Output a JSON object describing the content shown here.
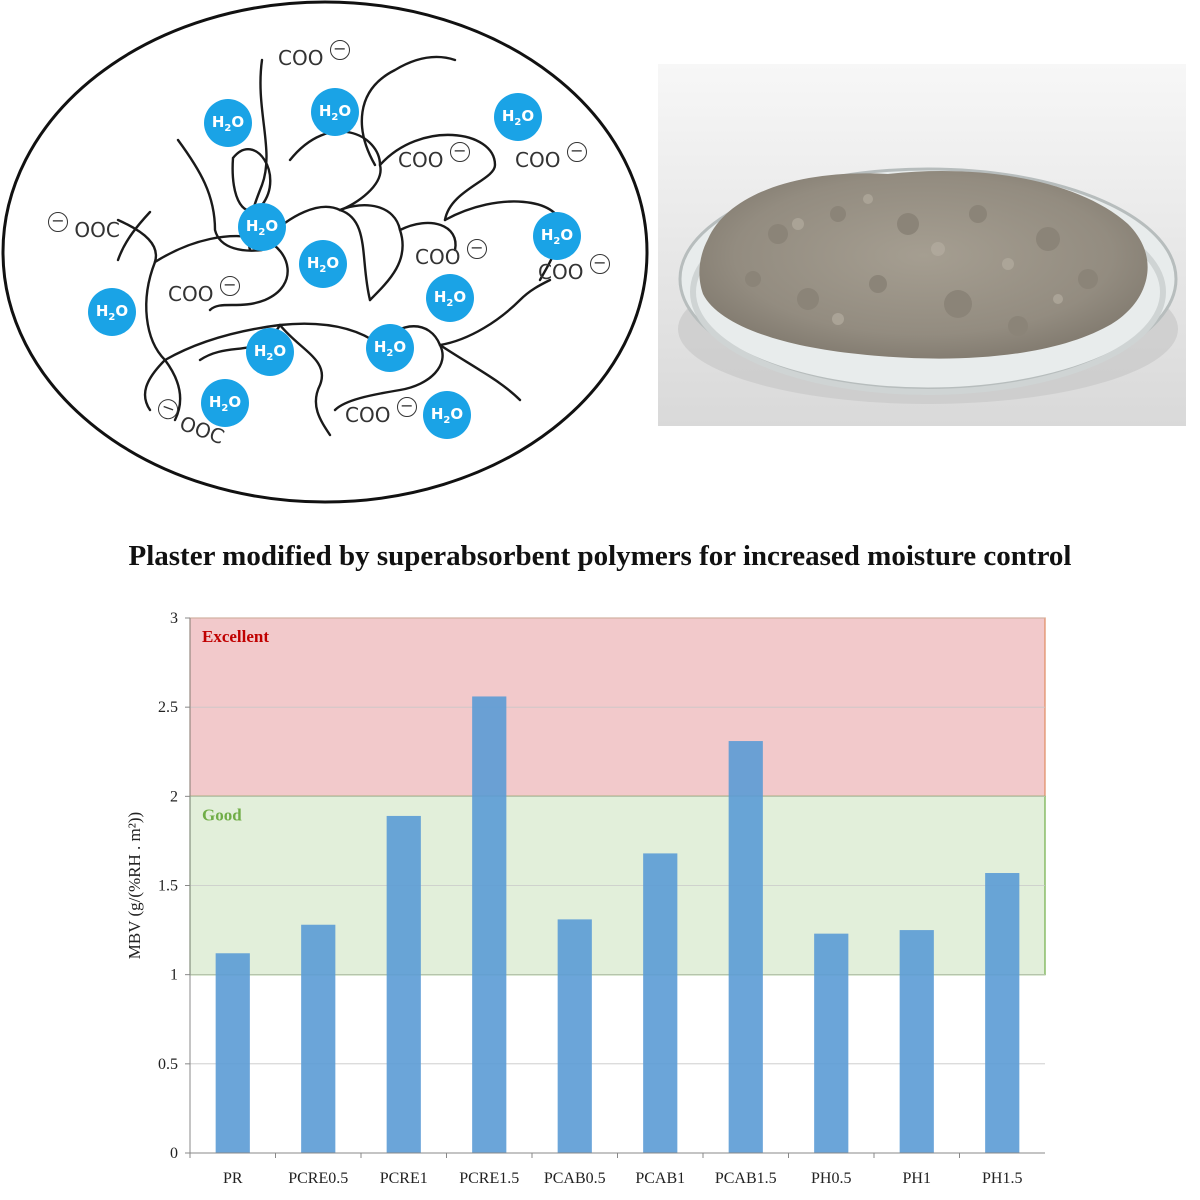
{
  "figure_title": "Plaster modified by superabsorbent polymers for increased moisture control",
  "diagram": {
    "water_label": "H2O",
    "water_sub": "2",
    "carboxylate_label": "COO",
    "carboxylate_label_rev": "OOC",
    "charge_symbol": "−",
    "water_color": "#1aa3e6",
    "line_color": "#1a1a1a"
  },
  "photo": {
    "subject": "petri dish with grey plaster powder"
  },
  "chart_data": {
    "type": "bar",
    "categories": [
      "PR",
      "PCRE0.5",
      "PCRE1",
      "PCRE1.5",
      "PCAB0.5",
      "PCAB1",
      "PCAB1.5",
      "PH0.5",
      "PH1",
      "PH1.5"
    ],
    "values": [
      1.12,
      1.28,
      1.89,
      2.56,
      1.31,
      1.68,
      2.31,
      1.23,
      1.25,
      1.57
    ],
    "ylabel": "MBV (g/(%RH . m²))",
    "xlabel": "",
    "ylim": [
      0,
      3
    ],
    "yticks": [
      "0",
      "0.5",
      "1",
      "1.5",
      "2",
      "2.5",
      "3"
    ],
    "bar_color": "#5b9bd5",
    "zones": [
      {
        "label": "Excellent",
        "from": 2,
        "to": 3,
        "fill": "#f2c9cb",
        "text_color": "#c00000",
        "edge": "#e08a60"
      },
      {
        "label": "Good",
        "from": 1,
        "to": 2,
        "fill": "#e2efda",
        "text_color": "#70ad47",
        "edge": "#70ad47"
      }
    ]
  }
}
